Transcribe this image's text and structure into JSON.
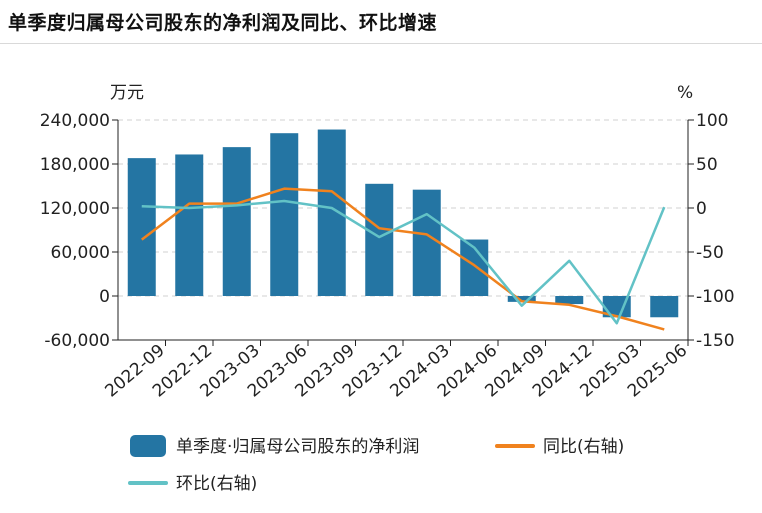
{
  "title": "单季度归属母公司股东的净利润及同比、环比增速",
  "chart_data": {
    "type": "bar+line",
    "categories": [
      "2022-09",
      "2022-12",
      "2023-03",
      "2023-06",
      "2023-09",
      "2023-12",
      "2024-03",
      "2024-06",
      "2024-09",
      "2024-12",
      "2025-03",
      "2025-06"
    ],
    "left_axis": {
      "unit": "万元",
      "ylim": [
        -60000,
        240000
      ],
      "ticks": [
        -60000,
        0,
        60000,
        120000,
        180000,
        240000
      ],
      "tick_labels": [
        "-60,000",
        "0",
        "60,000",
        "120,000",
        "180,000",
        "240,000"
      ]
    },
    "right_axis": {
      "unit": "%",
      "ylim": [
        -150,
        100
      ],
      "ticks": [
        -150,
        -100,
        -50,
        0,
        50,
        100
      ],
      "tick_labels": [
        "-150",
        "-100",
        "-50",
        "0",
        "50",
        "100"
      ]
    },
    "series": [
      {
        "name": "单季度·归属母公司股东的净利润",
        "kind": "bar",
        "axis": "left",
        "color": "#2475a3",
        "values": [
          188000,
          193000,
          203000,
          222000,
          227000,
          153000,
          145000,
          77000,
          -8000,
          -11000,
          -29000,
          -29000
        ]
      },
      {
        "name": "同比(右轴)",
        "kind": "line",
        "axis": "right",
        "color": "#f0821e",
        "values": [
          -36,
          5,
          5,
          22,
          19,
          -23,
          -30,
          -65,
          -106,
          -110,
          -123,
          -138
        ]
      },
      {
        "name": "环比(右轴)",
        "kind": "line",
        "axis": "right",
        "color": "#62c2c6",
        "values": [
          2,
          0,
          3,
          8,
          0,
          -33,
          -7,
          -45,
          -111,
          -60,
          -131,
          1
        ]
      }
    ],
    "grid": true,
    "legend_position": "bottom"
  }
}
